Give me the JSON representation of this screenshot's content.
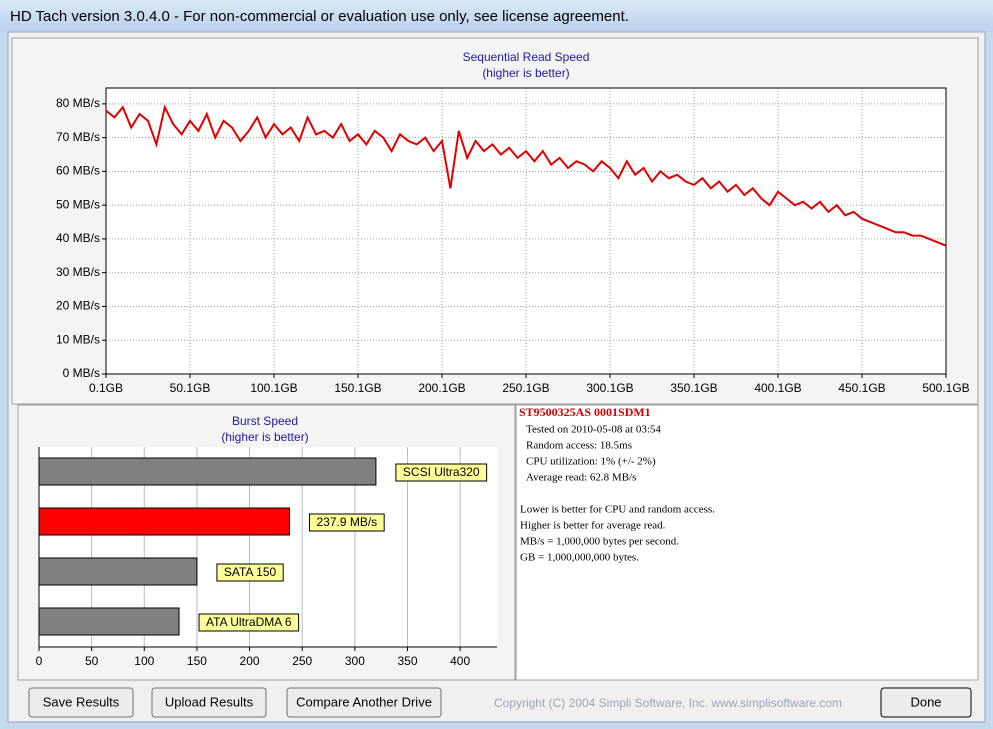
{
  "window": {
    "title": "HD Tach version 3.0.4.0  - For non-commercial or evaluation use only, see license agreement."
  },
  "chart_data": [
    {
      "type": "line",
      "title": "Sequential Read Speed",
      "subtitle": "(higher is better)",
      "x": [
        0.1,
        5.1,
        10.1,
        15.1,
        20.1,
        25.1,
        30.1,
        35.1,
        40.1,
        45.1,
        50.1,
        55.1,
        60.1,
        65.1,
        70.1,
        75.1,
        80.1,
        85.1,
        90.1,
        95.1,
        100.1,
        105.1,
        110.1,
        115.1,
        120.1,
        125.1,
        130.1,
        135.1,
        140.1,
        145.1,
        150.1,
        155.1,
        160.1,
        165.1,
        170.1,
        175.1,
        180.1,
        185.1,
        190.1,
        195.1,
        200.1,
        205.1,
        210.1,
        215.1,
        220.1,
        225.1,
        230.1,
        235.1,
        240.1,
        245.1,
        250.1,
        255.1,
        260.1,
        265.1,
        270.1,
        275.1,
        280.1,
        285.1,
        290.1,
        295.1,
        300.1,
        305.1,
        310.1,
        315.1,
        320.1,
        325.1,
        330.1,
        335.1,
        340.1,
        345.1,
        350.1,
        355.1,
        360.1,
        365.1,
        370.1,
        375.1,
        380.1,
        385.1,
        390.1,
        395.1,
        400.1,
        405.1,
        410.1,
        415.1,
        420.1,
        425.1,
        430.1,
        435.1,
        440.1,
        445.1,
        450.1,
        455.1,
        460.1,
        465.1,
        470.1,
        475.1,
        480.1,
        485.1,
        490.1,
        495.1,
        500.1
      ],
      "series": [
        {
          "name": "Read",
          "color": "#e00000",
          "values": [
            78,
            76,
            79,
            73,
            77,
            75,
            68,
            79,
            74,
            71,
            75,
            72,
            77,
            70,
            75,
            73,
            69,
            72,
            76,
            70,
            74,
            71,
            73,
            69,
            76,
            71,
            72,
            70,
            74,
            69,
            71,
            68,
            72,
            70,
            66,
            71,
            69,
            68,
            70,
            66,
            69,
            55,
            72,
            64,
            69,
            66,
            68,
            65,
            67,
            64,
            66,
            63,
            66,
            62,
            64,
            61,
            63,
            62,
            60,
            63,
            61,
            58,
            63,
            59,
            61,
            57,
            60,
            58,
            59,
            57,
            56,
            58,
            55,
            57,
            54,
            56,
            53,
            55,
            52,
            50,
            54,
            52,
            50,
            51,
            49,
            51,
            48,
            50,
            47,
            48,
            46,
            45,
            44,
            43,
            42,
            42,
            41,
            41,
            40,
            39,
            38
          ]
        }
      ],
      "xlim": [
        0.1,
        500.1
      ],
      "xticks": [
        {
          "value": 0.1,
          "label": "0.1GB"
        },
        {
          "value": 50.1,
          "label": "50.1GB"
        },
        {
          "value": 100.1,
          "label": "100.1GB"
        },
        {
          "value": 150.1,
          "label": "150.1GB"
        },
        {
          "value": 200.1,
          "label": "200.1GB"
        },
        {
          "value": 250.1,
          "label": "250.1GB"
        },
        {
          "value": 300.1,
          "label": "300.1GB"
        },
        {
          "value": 350.1,
          "label": "350.1GB"
        },
        {
          "value": 400.1,
          "label": "400.1GB"
        },
        {
          "value": 450.1,
          "label": "450.1GB"
        },
        {
          "value": 500.1,
          "label": "500.1GB"
        }
      ],
      "ylim": [
        0,
        84.7
      ],
      "yticks": [
        {
          "value": 0,
          "label": "0 MB/s"
        },
        {
          "value": 10,
          "label": "10 MB/s"
        },
        {
          "value": 20,
          "label": "20 MB/s"
        },
        {
          "value": 30,
          "label": "30 MB/s"
        },
        {
          "value": 40,
          "label": "40 MB/s"
        },
        {
          "value": 50,
          "label": "50 MB/s"
        },
        {
          "value": 60,
          "label": "60 MB/s"
        },
        {
          "value": 70,
          "label": "70 MB/s"
        },
        {
          "value": 80,
          "label": "80 MB/s"
        }
      ],
      "grid": true
    },
    {
      "type": "bar",
      "orientation": "horizontal",
      "title": "Burst Speed",
      "subtitle": "(higher is better)",
      "categories": [
        "SCSI Ultra320",
        "237.9 MB/s",
        "SATA 150",
        "ATA UltraDMA 6"
      ],
      "values": [
        320,
        237.9,
        150,
        133
      ],
      "colors": [
        "#808080",
        "#ff0000",
        "#808080",
        "#808080"
      ],
      "xlim": [
        0,
        435
      ],
      "xticks": [
        0,
        50,
        100,
        150,
        200,
        250,
        300,
        350,
        400
      ],
      "grid": true
    }
  ],
  "info": {
    "drive": "ST9500325AS 0001SDM1",
    "results": [
      "Tested on 2010-05-08 at 03:54",
      "Random access: 18.5ms",
      "CPU utilization: 1% (+/- 2%)",
      "Average read: 62.8 MB/s"
    ],
    "notes": [
      "Lower is better for CPU and random access.",
      "Higher is better for average read.",
      "MB/s = 1,000,000 bytes per second.",
      "GB = 1,000,000,000 bytes."
    ]
  },
  "buttons": [
    "Save Results",
    "Upload Results",
    "Compare Another Drive",
    "Done"
  ],
  "copyright": "Copyright (C) 2004 Simpli Software, Inc. www.simplisoftware.com"
}
